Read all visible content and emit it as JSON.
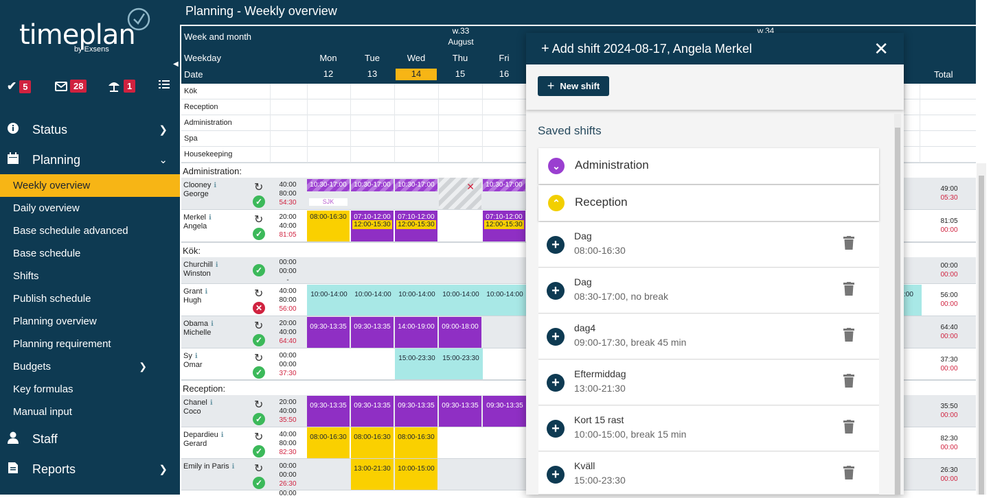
{
  "app": {
    "logo_text": "timeplan",
    "logo_by": "by Exsens"
  },
  "badges": [
    {
      "icon": "check-icon",
      "count": "5"
    },
    {
      "icon": "mail-icon",
      "count": "28"
    },
    {
      "icon": "beach-umbrella-icon",
      "count": "1"
    },
    {
      "icon": "list-icon",
      "count": ""
    }
  ],
  "nav": {
    "status": "Status",
    "planning": "Planning",
    "staff": "Staff",
    "reports": "Reports",
    "planning_items": [
      "Weekly overview",
      "Daily overview",
      "Base schedule advanced",
      "Base schedule",
      "Shifts",
      "Publish schedule",
      "Planning overview",
      "Planning requirement",
      "Budgets",
      "Key formulas",
      "Manual input"
    ]
  },
  "page": {
    "title": "Planning - Weekly overview"
  },
  "grid": {
    "h_weekmonth": "Week and month",
    "h_weekday": "Weekday",
    "h_date": "Date",
    "h_total": "Total",
    "w33": "w.33",
    "w34": "w.34",
    "month": "August",
    "days": [
      {
        "day": "Mon",
        "date": "12"
      },
      {
        "day": "Tue",
        "date": "13"
      },
      {
        "day": "Wed",
        "date": "14"
      },
      {
        "day": "Thu",
        "date": "15"
      },
      {
        "day": "Fri",
        "date": "16"
      }
    ],
    "today_color": "#f7b515",
    "labels": [
      "Kök",
      "Reception",
      "Administration",
      "Spa",
      "Housekeeping"
    ],
    "sections": [
      "Administration:",
      "Kök:",
      "Reception:"
    ],
    "people": [
      {
        "first": "Clooney",
        "last": "George",
        "h1": "40:00",
        "h2": "80:00",
        "h3": "54:30",
        "t1": "49:00",
        "t2": "05:30",
        "status": "ok",
        "shifts": [
          "10:30-17:00",
          "10:30-17:00",
          "10:30-17:00",
          "",
          "10:30-17:00"
        ],
        "sub_mon": "SJK"
      },
      {
        "first": "Merkel",
        "last": "Angela",
        "h1": "20:00",
        "h2": "40:00",
        "h3": "81:05",
        "t1": "81:05",
        "t2": "00:00",
        "status": "ok",
        "shifts": [
          "08:00-16:30",
          "07:10-12:00",
          "07:10-12:00",
          "",
          "07:10-12:00"
        ],
        "shifts2": [
          "",
          "12:00-15:30",
          "12:00-15:30",
          "",
          "12:00-15:30"
        ]
      },
      {
        "first": "Churchill",
        "last": "Winston",
        "h1": "00:00",
        "h2": "00:00",
        "h3": "-",
        "t1": "00:00",
        "t2": "00:00",
        "status": "ok"
      },
      {
        "first": "Grant",
        "last": "Hugh",
        "h1": "40:00",
        "h2": "80:00",
        "h3": "56:00",
        "t1": "56:00",
        "t2": "00:00",
        "status": "bad",
        "shifts": [
          "10:00-14:00",
          "10:00-14:00",
          "10:00-14:00",
          "10:00-14:00",
          "10:00-14:00"
        ],
        "extra": ":00"
      },
      {
        "first": "Obama",
        "last": "Michelle",
        "h1": "20:00",
        "h2": "40:00",
        "h3": "64:40",
        "t1": "64:40",
        "t2": "00:00",
        "status": "ok",
        "shifts": [
          "09:30-13:35",
          "09:30-13:35",
          "14:00-19:00",
          "09:00-18:00",
          ""
        ]
      },
      {
        "first": "Sy",
        "last": "Omar",
        "h1": "00:00",
        "h2": "00:00",
        "h3": "37:30",
        "t1": "37:30",
        "t2": "00:00",
        "status": "ok",
        "shifts": [
          "",
          "",
          "15:00-23:30",
          "15:00-23:30",
          ""
        ]
      },
      {
        "first": "Chanel",
        "last": "Coco",
        "h1": "20:00",
        "h2": "40:00",
        "h3": "35:50",
        "t1": "35:50",
        "t2": "00:00",
        "status": "ok",
        "shifts": [
          "09:30-13:35",
          "09:30-13:35",
          "09:30-13:35",
          "09:30-13:35",
          "09:30-13:35"
        ]
      },
      {
        "first": "Depardieu",
        "last": "Gerard",
        "h1": "40:00",
        "h2": "80:00",
        "h3": "82:30",
        "t1": "82:30",
        "t2": "00:00",
        "status": "ok",
        "shifts": [
          "08:00-16:30",
          "08:00-16:30",
          "08:00-16:30",
          "",
          ""
        ]
      },
      {
        "first": "Emily in Paris",
        "last": "",
        "h1": "00:00",
        "h2": "00:00",
        "h3": "26:30",
        "t1": "26:30",
        "t2": "00:00",
        "status": "ok",
        "shifts": [
          "",
          "13:00-21:30",
          "10:00-15:00",
          "",
          ""
        ]
      }
    ],
    "last_row_h1": "00:00"
  },
  "dialog": {
    "title": "Add shift 2024-08-17, Angela Merkel",
    "new_shift": "New shift",
    "saved_heading": "Saved shifts",
    "groups": [
      {
        "label": "Administration",
        "color": "#9a3fd0",
        "expanded": false
      },
      {
        "label": "Reception",
        "color": "#f2cf00",
        "expanded": true
      }
    ],
    "items": [
      {
        "name": "Dag",
        "time": "08:00-16:30"
      },
      {
        "name": "Dag",
        "time": "08:30-17:00, no break"
      },
      {
        "name": "dag4",
        "time": "09:00-17:30, break 45 min"
      },
      {
        "name": "Eftermiddag",
        "time": "13:00-21:30"
      },
      {
        "name": "Kort 15 rast",
        "time": "10:00-15:00, break 15 min"
      },
      {
        "name": "Kväll",
        "time": "15:00-23:30"
      }
    ]
  }
}
